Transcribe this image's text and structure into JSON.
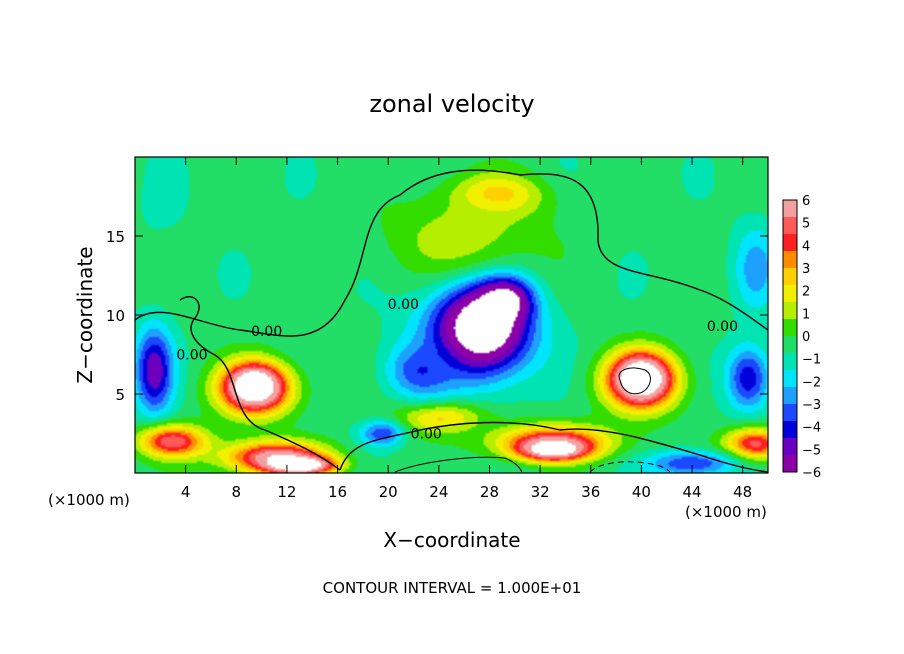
{
  "chart_data": {
    "type": "heatmap",
    "title": "zonal velocity",
    "xlabel": "X−coordinate",
    "ylabel": "Z−coordinate",
    "x_unit_left": "(×1000 m)",
    "x_unit_right": "(×1000 m)",
    "xlim": [
      0,
      50
    ],
    "ylim": [
      0,
      20
    ],
    "xticks": [
      4,
      8,
      12,
      16,
      20,
      24,
      28,
      32,
      36,
      40,
      44,
      48
    ],
    "yticks": [
      5,
      10,
      15
    ],
    "colorbar": {
      "ticks": [
        "6",
        "5",
        "4",
        "3",
        "2",
        "1",
        "0",
        "−1",
        "−2",
        "−3",
        "−4",
        "−5",
        "−6"
      ],
      "range": [
        -6,
        6
      ],
      "colors": [
        "#f5a0a0",
        "#ff5a5a",
        "#ff2020",
        "#ff8c00",
        "#ffd000",
        "#f0f000",
        "#b6ee00",
        "#33dd00",
        "#22dd66",
        "#00e4b4",
        "#00e4ff",
        "#1ea0ff",
        "#1c48ff",
        "#0000d8",
        "#6a00c0",
        "#8c00a8"
      ]
    },
    "contour_labels": [
      {
        "text": "0.00",
        "x": 21.2,
        "y": 10.7
      },
      {
        "text": "0.00",
        "x": 10.4,
        "y": 9.0
      },
      {
        "text": "0.00",
        "x": 4.5,
        "y": 7.5
      },
      {
        "text": "0.00",
        "x": 46.4,
        "y": 9.3
      },
      {
        "text": "0.00",
        "x": 23.0,
        "y": 2.5
      }
    ],
    "footer": "CONTOUR INTERVAL = 1.000E+01",
    "background_value": -0.5,
    "blobs": [
      {
        "x": 27.0,
        "y": 9.0,
        "rx": 6.5,
        "ry": 5.0,
        "v": -4.5
      },
      {
        "x": 27.5,
        "y": 9.3,
        "rx": 4.5,
        "ry": 3.6,
        "v": -8.5
      },
      {
        "x": 29.0,
        "y": 11.0,
        "rx": 3.0,
        "ry": 2.0,
        "v": -8.5
      },
      {
        "x": 28.5,
        "y": 17.5,
        "rx": 5.5,
        "ry": 2.0,
        "v": 2.8
      },
      {
        "x": 26.0,
        "y": 15.0,
        "rx": 9.0,
        "ry": 4.0,
        "v": 1.2
      },
      {
        "x": 9.5,
        "y": 5.3,
        "rx": 4.5,
        "ry": 2.6,
        "v": 5.0
      },
      {
        "x": 9.5,
        "y": 5.5,
        "rx": 3.0,
        "ry": 1.8,
        "v": 8.5
      },
      {
        "x": 40.0,
        "y": 5.8,
        "rx": 4.5,
        "ry": 2.8,
        "v": 5.0
      },
      {
        "x": 40.0,
        "y": 6.0,
        "rx": 3.0,
        "ry": 2.0,
        "v": 8.5
      },
      {
        "x": 1.5,
        "y": 6.5,
        "rx": 2.2,
        "ry": 4.0,
        "v": -5.0
      },
      {
        "x": 48.5,
        "y": 6.0,
        "rx": 2.5,
        "ry": 3.0,
        "v": -4.5
      },
      {
        "x": 49.0,
        "y": 1.8,
        "rx": 3.5,
        "ry": 1.5,
        "v": 5.0
      },
      {
        "x": 44.0,
        "y": 0.6,
        "rx": 5.0,
        "ry": 1.2,
        "v": -4.0
      },
      {
        "x": 33.0,
        "y": 2.0,
        "rx": 7.0,
        "ry": 1.6,
        "v": 4.5
      },
      {
        "x": 33.0,
        "y": 1.5,
        "rx": 4.0,
        "ry": 1.0,
        "v": 8.0
      },
      {
        "x": 24.0,
        "y": 3.5,
        "rx": 5.0,
        "ry": 1.5,
        "v": 2.5
      },
      {
        "x": 19.5,
        "y": 2.5,
        "rx": 2.5,
        "ry": 1.2,
        "v": -3.5
      },
      {
        "x": 3.0,
        "y": 2.0,
        "rx": 4.0,
        "ry": 1.5,
        "v": 5.0
      },
      {
        "x": 11.0,
        "y": 1.0,
        "rx": 6.0,
        "ry": 1.5,
        "v": 6.0
      },
      {
        "x": 13.0,
        "y": 0.5,
        "rx": 4.0,
        "ry": 0.8,
        "v": 8.5
      },
      {
        "x": 22.5,
        "y": 6.5,
        "rx": 4.0,
        "ry": 2.5,
        "v": -3.5
      },
      {
        "x": 2.0,
        "y": 16.0,
        "rx": 3.5,
        "ry": 5.0,
        "v": -0.8
      },
      {
        "x": 49.0,
        "y": 13.0,
        "rx": 2.5,
        "ry": 4.0,
        "v": -2.5
      }
    ]
  }
}
